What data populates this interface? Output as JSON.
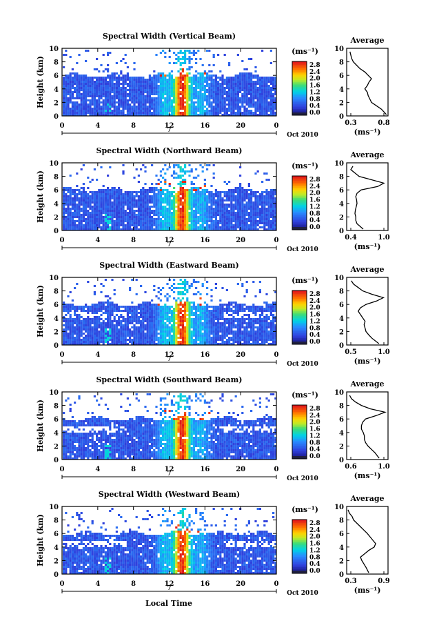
{
  "figure": {
    "bottom_xlabel": "Local Time",
    "colorbar_unit": "(ms⁻¹)",
    "colorbar_ticks": [
      "2.8",
      "2.4",
      "2.0",
      "1.6",
      "1.2",
      "0.8",
      "0.4",
      "0.0"
    ],
    "time_ticks": [
      "0",
      "4",
      "8",
      "12",
      "16",
      "20",
      "0"
    ],
    "height_ticks": [
      "10",
      "8",
      "6",
      "4",
      "2",
      "0"
    ],
    "height_label": "Height (km)",
    "date_mark": "7",
    "date_text": "Oct 2010",
    "avg_title": "Average",
    "avg_xlabel": "(ms⁻¹)"
  },
  "chart_data": [
    {
      "type": "heatmap",
      "title": "Spectral Width (Vertical Beam)",
      "xlabel": "",
      "ylabel": "Height (km)",
      "xlim": [
        0,
        24
      ],
      "ylim": [
        0,
        10
      ],
      "color_range": [
        0.0,
        3.0
      ],
      "average_profile": {
        "xlim": [
          0.3,
          0.8
        ],
        "xticks": [
          "0.3",
          "0.8"
        ],
        "height": [
          0.2,
          1,
          1.5,
          2,
          2.5,
          3,
          3.5,
          4,
          4.5,
          5,
          5.5,
          6,
          6.5,
          7,
          7.5,
          8,
          8.5,
          9,
          9.5
        ],
        "value": [
          0.78,
          0.72,
          0.66,
          0.6,
          0.58,
          0.56,
          0.55,
          0.52,
          0.55,
          0.57,
          0.6,
          0.56,
          0.52,
          0.46,
          0.42,
          0.38,
          0.36,
          0.35,
          0.34
        ]
      }
    },
    {
      "type": "heatmap",
      "title": "Spectral Width (Northward Beam)",
      "xlabel": "",
      "ylabel": "Height (km)",
      "xlim": [
        0,
        24
      ],
      "ylim": [
        0,
        10
      ],
      "color_range": [
        0.0,
        3.0
      ],
      "average_profile": {
        "xlim": [
          0.2,
          1.2
        ],
        "xticks": [
          "0.4",
          "1.0"
        ],
        "height": [
          0.2,
          1,
          1.5,
          2,
          2.5,
          3,
          3.5,
          4,
          4.5,
          5,
          5.5,
          6,
          6.5,
          7,
          7.5,
          8,
          8.5,
          9,
          9.5
        ],
        "value": [
          0.6,
          0.45,
          0.42,
          0.42,
          0.4,
          0.41,
          0.43,
          0.45,
          0.44,
          0.42,
          0.45,
          0.55,
          0.95,
          1.1,
          0.8,
          0.5,
          0.4,
          0.3,
          0.35
        ]
      }
    },
    {
      "type": "heatmap",
      "title": "Spectral Width (Eastward Beam)",
      "xlabel": "",
      "ylabel": "Height (km)",
      "xlim": [
        0,
        24
      ],
      "ylim": [
        0,
        10
      ],
      "color_range": [
        0.0,
        3.0
      ],
      "average_profile": {
        "xlim": [
          0.2,
          1.1
        ],
        "xticks": [
          "0.5",
          "1.0"
        ],
        "height": [
          0.2,
          1,
          1.5,
          2,
          2.5,
          3,
          3.5,
          4,
          4.5,
          5,
          5.5,
          6,
          6.5,
          7,
          7.5,
          8,
          8.5,
          9,
          9.5
        ],
        "value": [
          0.9,
          0.75,
          0.68,
          0.62,
          0.6,
          0.58,
          0.6,
          0.55,
          0.5,
          0.45,
          0.5,
          0.62,
          0.85,
          1.0,
          0.75,
          0.55,
          0.45,
          0.35,
          0.3
        ]
      }
    },
    {
      "type": "heatmap",
      "title": "Spectral Width (Southward Beam)",
      "xlabel": "",
      "ylabel": "Height (km)",
      "xlim": [
        0,
        24
      ],
      "ylim": [
        0,
        10
      ],
      "color_range": [
        0.0,
        3.0
      ],
      "average_profile": {
        "xlim": [
          0.3,
          1.0
        ],
        "xticks": [
          "0.6",
          "1.0"
        ],
        "height": [
          0.2,
          1,
          1.5,
          2,
          2.5,
          3,
          3.5,
          4,
          4.5,
          5,
          5.5,
          6,
          6.5,
          7,
          7.5,
          8,
          8.5,
          9,
          9.5
        ],
        "value": [
          0.85,
          0.78,
          0.72,
          0.66,
          0.62,
          0.6,
          0.6,
          0.58,
          0.55,
          0.55,
          0.57,
          0.62,
          0.8,
          0.95,
          0.7,
          0.55,
          0.45,
          0.38,
          0.35
        ]
      }
    },
    {
      "type": "heatmap",
      "title": "Spectral Width (Westward Beam)",
      "xlabel": "Local Time",
      "ylabel": "Height (km)",
      "xlim": [
        0,
        24
      ],
      "ylim": [
        0,
        10
      ],
      "color_range": [
        0.0,
        3.0
      ],
      "average_profile": {
        "xlim": [
          0.3,
          0.9
        ],
        "xticks": [
          "0.3",
          "0.9"
        ],
        "height": [
          0.2,
          1,
          1.5,
          2,
          2.5,
          3,
          3.5,
          4,
          4.5,
          5,
          5.5,
          6,
          6.5,
          7,
          7.5,
          8,
          8.5,
          9,
          9.5
        ],
        "value": [
          0.62,
          0.58,
          0.55,
          0.52,
          0.5,
          0.56,
          0.62,
          0.7,
          0.72,
          0.68,
          0.64,
          0.6,
          0.55,
          0.5,
          0.45,
          0.4,
          0.38,
          0.34,
          0.32
        ]
      }
    }
  ]
}
